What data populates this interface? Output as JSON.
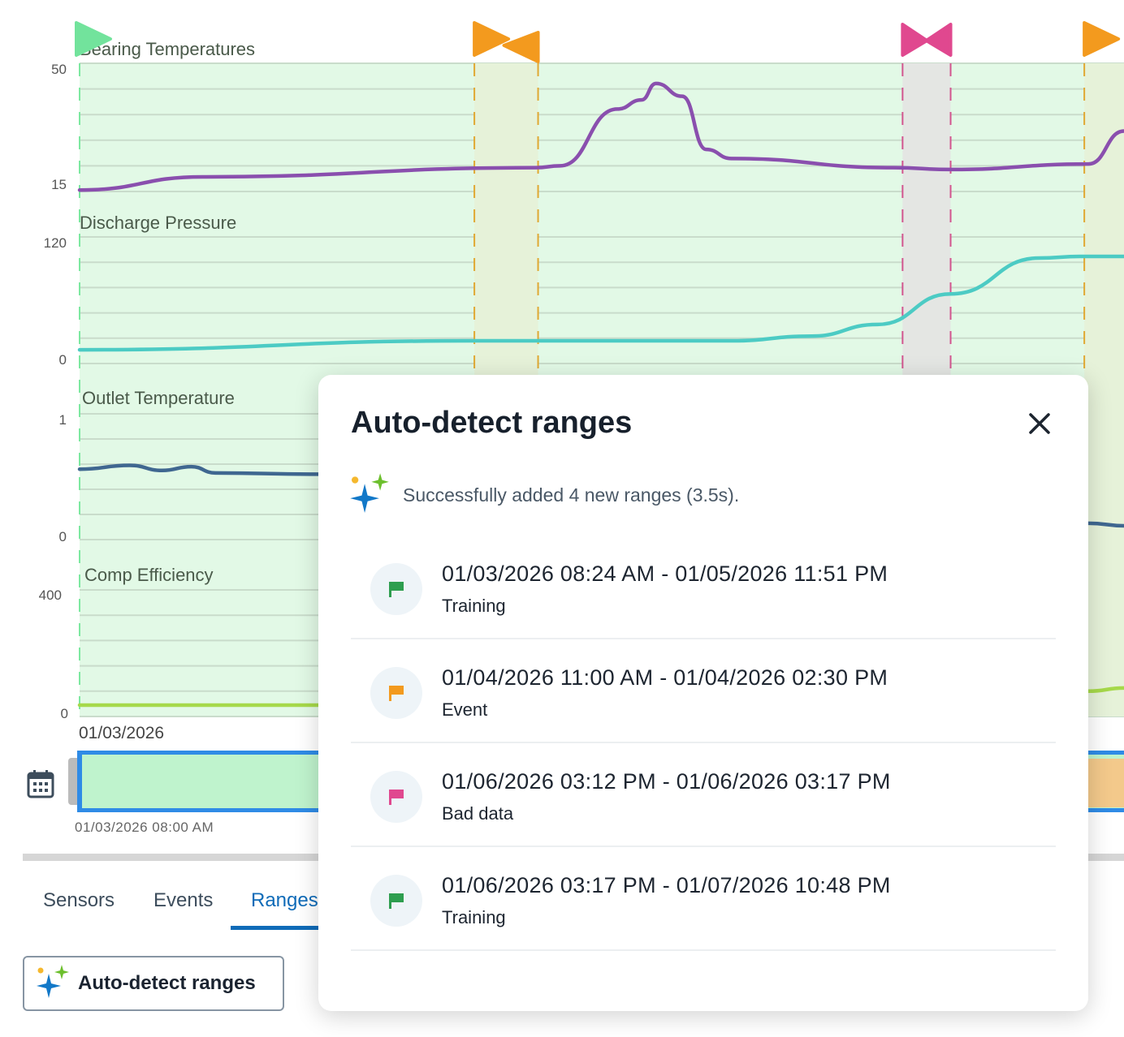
{
  "chart_data": {
    "type": "line",
    "x_range": [
      0,
      100
    ],
    "x_tick_label": "01/03/2026",
    "panels": [
      {
        "title": "Bearing Temperatures",
        "ylim": [
          15,
          50
        ],
        "yticks": [
          "50",
          "15"
        ],
        "color": "#8a4fae",
        "x": [
          0,
          11.8,
          43.7,
          46,
          51.5,
          53.8,
          55.2,
          57.7,
          60,
          62.4,
          77.9,
          83.4,
          96.6,
          100
        ],
        "y": [
          15.4,
          19,
          21.5,
          22,
          37.5,
          40,
          44.5,
          41,
          26.5,
          24,
          21.5,
          21,
          22.5,
          31.5
        ]
      },
      {
        "title": "Discharge Pressure",
        "ylim": [
          0,
          120
        ],
        "yticks": [
          "120",
          "0"
        ],
        "color": "#4ccbc4",
        "x": [
          0,
          37.5,
          62.4,
          70.1,
          76.4,
          83.4,
          91.9,
          95.8,
          100
        ],
        "y": [
          13,
          21.5,
          21.5,
          26,
          37,
          66,
          100,
          101.5,
          101.5
        ]
      },
      {
        "title": "Outlet Temperature",
        "ylim": [
          0,
          1
        ],
        "yticks": [
          "1",
          "0"
        ],
        "color": "#3f6790",
        "x": [
          0,
          4.8,
          7.9,
          10.7,
          13,
          22.7,
          60,
          96.6,
          100
        ],
        "y": [
          0.56,
          0.59,
          0.55,
          0.58,
          0.53,
          0.52,
          0.3,
          0.13,
          0.11
        ]
      },
      {
        "title": "Comp Efficiency",
        "ylim": [
          0,
          400
        ],
        "yticks": [
          "400",
          "0"
        ],
        "color": "#a6d94a",
        "x": [
          0,
          22.7,
          70,
          85,
          96.6,
          100
        ],
        "y": [
          36,
          36,
          45,
          60,
          80,
          90
        ]
      }
    ],
    "ranges": [
      {
        "type": "training",
        "start": 0,
        "end": 100,
        "color": "#7de8a0"
      },
      {
        "type": "event",
        "start": 37.8,
        "end": 43.9,
        "color": "#f39a1e"
      },
      {
        "type": "bad-data",
        "start": 78.8,
        "end": 83.4,
        "color": "#e0488f"
      },
      {
        "type": "event",
        "start": 96.2,
        "end": 100,
        "color": "#f39a1e"
      }
    ]
  },
  "timeline": {
    "start_label": "01/03/2026 08:00 AM"
  },
  "tabs": [
    {
      "label": "Sensors"
    },
    {
      "label": "Events"
    },
    {
      "label": "Ranges"
    }
  ],
  "auto_detect_button": "Auto-detect ranges",
  "modal": {
    "title": "Auto-detect ranges",
    "success": "Successfully added 4 new ranges (3.5s).",
    "ranges": [
      {
        "range": "01/03/2026 08:24 AM - 01/05/2026 11:51 PM",
        "type": "Training",
        "color": "#2e9e4f"
      },
      {
        "range": "01/04/2026 11:00 AM - 01/04/2026 02:30 PM",
        "type": "Event",
        "color": "#f39a1e"
      },
      {
        "range": "01/06/2026 03:12 PM - 01/06/2026 03:17 PM",
        "type": "Bad data",
        "color": "#e0488f"
      },
      {
        "range": "01/06/2026 03:17 PM - 01/07/2026 10:48 PM",
        "type": "Training",
        "color": "#2e9e4f"
      }
    ]
  }
}
